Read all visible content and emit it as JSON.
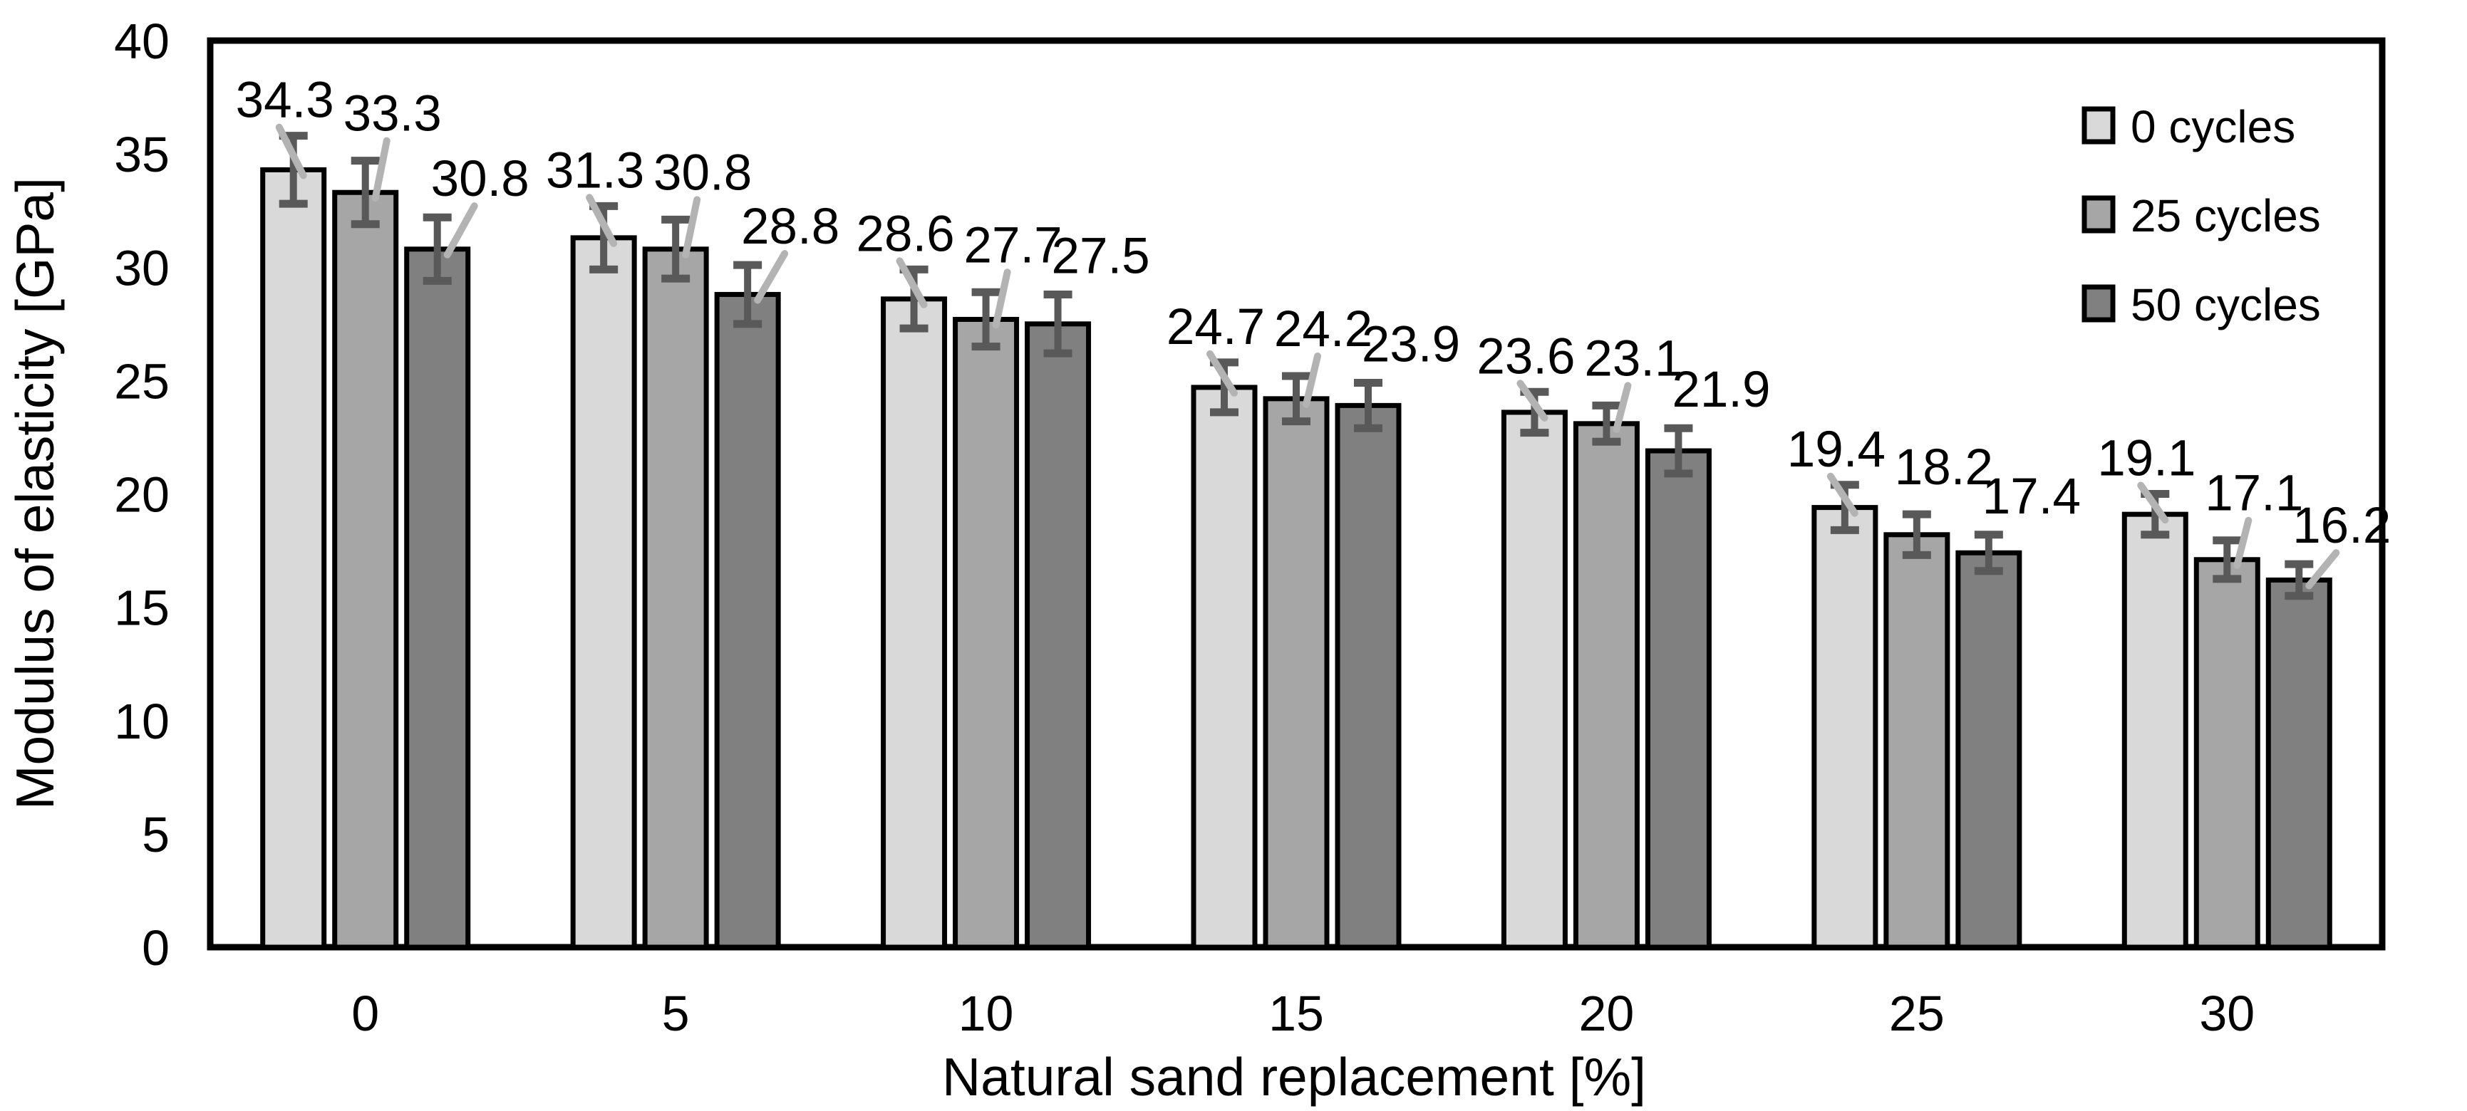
{
  "chart_data": {
    "type": "bar",
    "title": "",
    "xlabel": "Natural sand replacement [%]",
    "ylabel": "Modulus of elasticity [GPa]",
    "categories": [
      "0",
      "5",
      "10",
      "15",
      "20",
      "25",
      "30"
    ],
    "ylim": [
      0,
      40
    ],
    "yticks": [
      0,
      5,
      10,
      15,
      20,
      25,
      30,
      35,
      40
    ],
    "grid": false,
    "legend_position": "top-right-inside",
    "series": [
      {
        "name": "0 cycles",
        "color": "#d9d9d9",
        "values": [
          34.3,
          31.3,
          28.6,
          24.7,
          23.6,
          19.4,
          19.1
        ],
        "errors": [
          1.5,
          1.4,
          1.3,
          1.1,
          0.9,
          1.0,
          0.9
        ],
        "leaders": [
          true,
          true,
          true,
          true,
          true,
          true,
          true
        ]
      },
      {
        "name": "25 cycles",
        "color": "#a6a6a6",
        "values": [
          33.3,
          30.8,
          27.7,
          24.2,
          23.1,
          18.2,
          17.1
        ],
        "errors": [
          1.4,
          1.3,
          1.2,
          1.0,
          0.8,
          0.9,
          0.85
        ],
        "leaders": [
          true,
          true,
          true,
          true,
          true,
          false,
          true
        ]
      },
      {
        "name": "50 cycles",
        "color": "#808080",
        "values": [
          30.8,
          28.8,
          27.5,
          23.9,
          21.9,
          17.4,
          16.2
        ],
        "errors": [
          1.4,
          1.3,
          1.3,
          1.0,
          1.0,
          0.8,
          0.7
        ],
        "leaders": [
          true,
          true,
          false,
          false,
          false,
          false,
          true
        ]
      }
    ],
    "styles": {
      "bar_border": "#000000",
      "error_bar": "#595959",
      "leader_line": "#b3b3b3",
      "axis": "#000000",
      "text": "#000000",
      "background": "#ffffff"
    }
  }
}
